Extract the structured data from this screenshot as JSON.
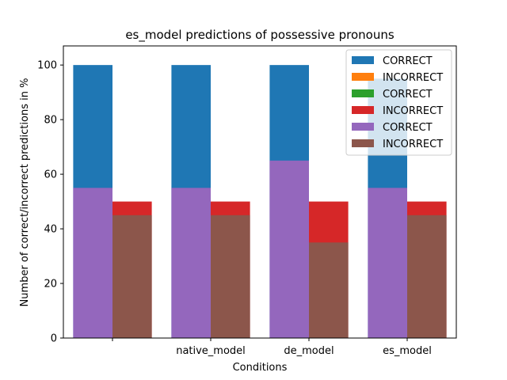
{
  "chart_data": {
    "type": "bar",
    "title": "es_model predictions of possessive pronouns",
    "xlabel": "Conditions",
    "ylabel": "Number of correct/incorrect predictions in %",
    "ylim": [
      0,
      107
    ],
    "yticks": [
      0,
      20,
      40,
      60,
      80,
      100
    ],
    "categories": [
      "",
      "native_model",
      "de_model",
      "es_model"
    ],
    "grid": false,
    "legend_position": "top-right",
    "legend": [
      {
        "label": "CORRECT",
        "color": "#1f77b4"
      },
      {
        "label": "INCORRECT",
        "color": "#ff7f0e"
      },
      {
        "label": "CORRECT",
        "color": "#2ca02c"
      },
      {
        "label": "INCORRECT",
        "color": "#d62728"
      },
      {
        "label": "CORRECT",
        "color": "#9467bd"
      },
      {
        "label": "INCORRECT",
        "color": "#8c564b"
      }
    ],
    "series": [
      {
        "color": "#1f77b4",
        "offset": "left",
        "values": [
          100,
          100,
          100,
          95
        ]
      },
      {
        "color": "#ff7f0e",
        "offset": "center",
        "values": [
          0,
          1,
          1,
          1
        ]
      },
      {
        "color": "#2ca02c",
        "offset": "center",
        "values": [
          0,
          0.5,
          0.5,
          0.5
        ]
      },
      {
        "color": "#d62728",
        "offset": "right",
        "values": [
          50,
          50,
          50,
          50
        ]
      },
      {
        "color": "#9467bd",
        "offset": "left",
        "values": [
          55,
          55,
          65,
          55
        ]
      },
      {
        "color": "#8c564b",
        "offset": "right",
        "values": [
          45,
          45,
          35,
          45
        ]
      }
    ]
  }
}
